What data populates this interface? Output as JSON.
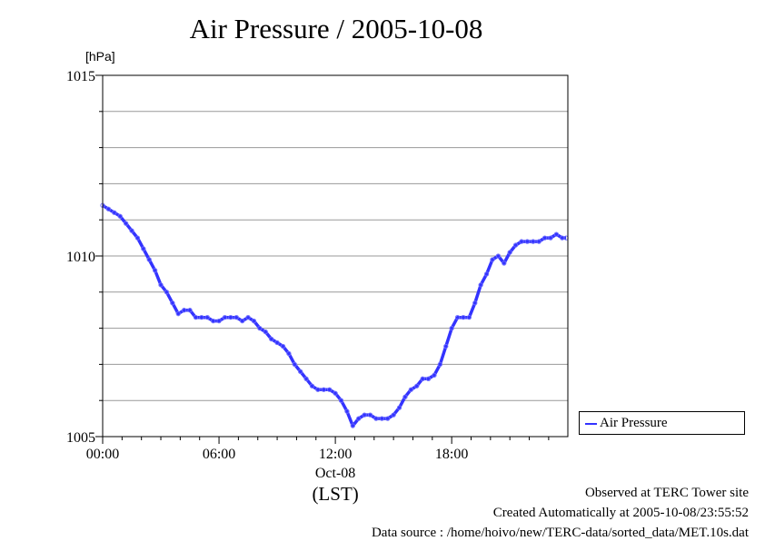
{
  "chart_data": {
    "type": "line",
    "title": "Air Pressure / 2005-10-08",
    "ylabel": "[hPa]",
    "xlabel": "(LST)",
    "date_label": "Oct-08",
    "ylim": [
      1005,
      1015
    ],
    "xlim": [
      0,
      23.99
    ],
    "yticks": [
      "1005",
      "1010",
      "1015"
    ],
    "xticks": [
      {
        "hour": 0,
        "label": "00:00"
      },
      {
        "hour": 6,
        "label": "06:00"
      },
      {
        "hour": 12,
        "label": "12:00"
      },
      {
        "hour": 18,
        "label": "18:00"
      }
    ],
    "grid": "horizontal",
    "legend_position": "right",
    "series": [
      {
        "name": "Air Pressure",
        "color": "#3333ff",
        "x": [
          0.0,
          0.3,
          0.6,
          0.9,
          1.2,
          1.5,
          1.8,
          2.1,
          2.4,
          2.7,
          3.0,
          3.3,
          3.6,
          3.9,
          4.2,
          4.5,
          4.8,
          5.1,
          5.4,
          5.7,
          6.0,
          6.3,
          6.6,
          6.9,
          7.2,
          7.5,
          7.8,
          8.1,
          8.4,
          8.7,
          9.0,
          9.3,
          9.6,
          9.9,
          10.2,
          10.5,
          10.8,
          11.1,
          11.4,
          11.7,
          12.0,
          12.3,
          12.6,
          12.9,
          13.2,
          13.5,
          13.8,
          14.1,
          14.4,
          14.7,
          15.0,
          15.3,
          15.6,
          15.9,
          16.2,
          16.5,
          16.8,
          17.1,
          17.4,
          17.7,
          18.0,
          18.3,
          18.6,
          18.9,
          19.2,
          19.5,
          19.8,
          20.1,
          20.4,
          20.7,
          21.0,
          21.3,
          21.6,
          21.9,
          22.2,
          22.5,
          22.8,
          23.1,
          23.4,
          23.7,
          23.9
        ],
        "values": [
          1011.4,
          1011.3,
          1011.2,
          1011.1,
          1010.9,
          1010.7,
          1010.5,
          1010.2,
          1009.9,
          1009.6,
          1009.2,
          1009.0,
          1008.7,
          1008.4,
          1008.5,
          1008.5,
          1008.3,
          1008.3,
          1008.3,
          1008.2,
          1008.2,
          1008.3,
          1008.3,
          1008.3,
          1008.2,
          1008.3,
          1008.2,
          1008.0,
          1007.9,
          1007.7,
          1007.6,
          1007.5,
          1007.3,
          1007.0,
          1006.8,
          1006.6,
          1006.4,
          1006.3,
          1006.3,
          1006.3,
          1006.2,
          1006.0,
          1005.7,
          1005.3,
          1005.5,
          1005.6,
          1005.6,
          1005.5,
          1005.5,
          1005.5,
          1005.6,
          1005.8,
          1006.1,
          1006.3,
          1006.4,
          1006.6,
          1006.6,
          1006.7,
          1007.0,
          1007.5,
          1008.0,
          1008.3,
          1008.3,
          1008.3,
          1008.7,
          1009.2,
          1009.5,
          1009.9,
          1010.0,
          1009.8,
          1010.1,
          1010.3,
          1010.4,
          1010.4,
          1010.4,
          1010.4,
          1010.5,
          1010.5,
          1010.6,
          1010.5,
          1010.5
        ]
      }
    ]
  },
  "footer": {
    "line1": "Observed at TERC Tower site",
    "line2": "Created Automatically at 2005-10-08/23:55:52",
    "line3": "Data source : /home/hoivo/new/TERC-data/sorted_data/MET.10s.dat"
  }
}
